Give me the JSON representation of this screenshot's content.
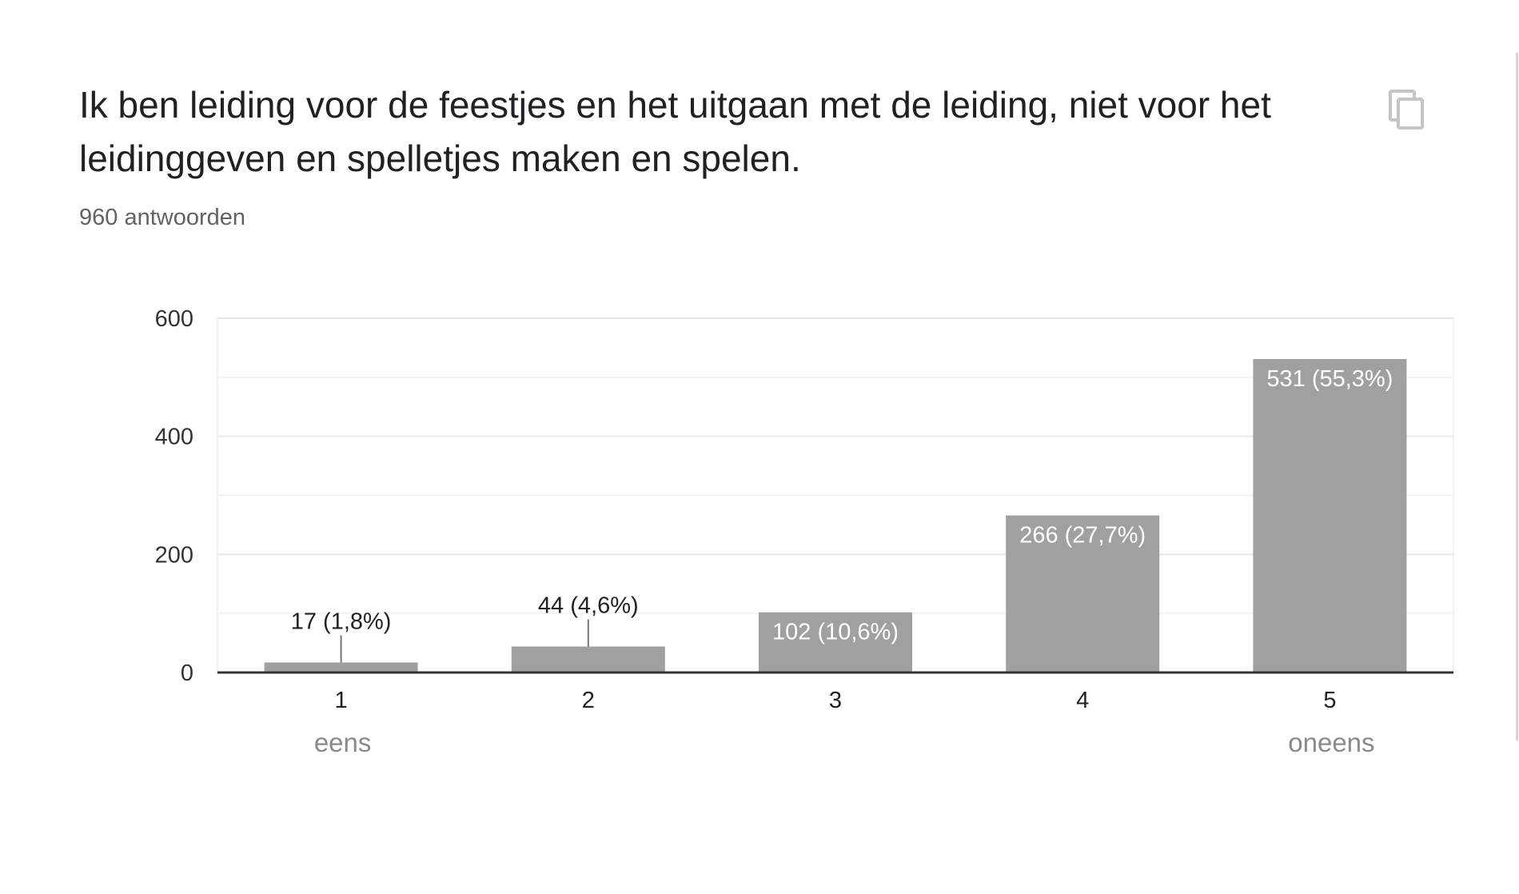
{
  "question": {
    "title": "Ik ben leiding voor de feestjes en het uitgaan met de leiding, niet voor het leidinggeven en spelletjes maken en spelen.",
    "response_count": "960 antwoorden"
  },
  "icons": {
    "copy": "copy-icon"
  },
  "colors": {
    "bar": "#a0a0a0",
    "label_inside": "#ffffff",
    "label_outside": "#222222",
    "grid": "#e8e8e8",
    "axis": "#333333",
    "scale_label": "#8a8a8a"
  },
  "chart_data": {
    "type": "bar",
    "categories": [
      "1",
      "2",
      "3",
      "4",
      "5"
    ],
    "values": [
      17,
      44,
      102,
      266,
      531
    ],
    "data_labels": [
      "17 (1,8%)",
      "44 (4,6%)",
      "102 (10,6%)",
      "266 (27,7%)",
      "531 (55,3%)"
    ],
    "yticks": [
      0,
      200,
      400,
      600
    ],
    "ylim": [
      0,
      600
    ],
    "minor_gridlines": true,
    "scale_labels": {
      "low": "eens",
      "high": "oneens"
    },
    "title": "",
    "xlabel": "",
    "ylabel": ""
  }
}
